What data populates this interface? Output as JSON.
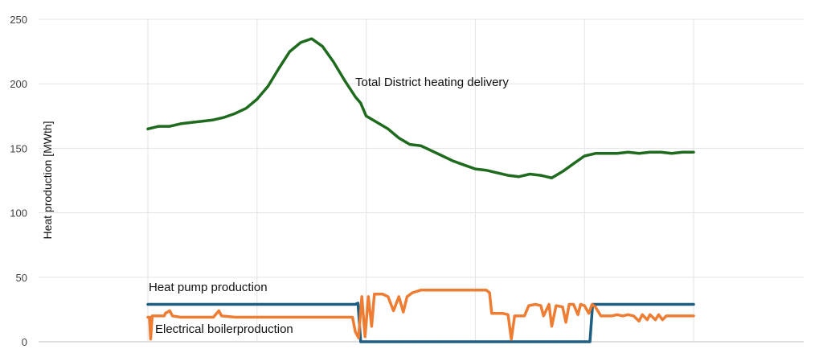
{
  "chart_data": {
    "type": "line",
    "title": "",
    "xlabel": "",
    "ylabel": "Heat production [MWth]",
    "ylim": [
      0,
      250
    ],
    "yticks": [
      0,
      50,
      100,
      150,
      200,
      250
    ],
    "xlim": [
      0,
      100
    ],
    "grid": true,
    "legend": "none",
    "series": [
      {
        "name": "Total District heating delivery",
        "color": "#1e6b1e",
        "points": [
          [
            0,
            165
          ],
          [
            2,
            167
          ],
          [
            4,
            167
          ],
          [
            6,
            169
          ],
          [
            8,
            170
          ],
          [
            10,
            171
          ],
          [
            12,
            172
          ],
          [
            14,
            174
          ],
          [
            16,
            177
          ],
          [
            18,
            181
          ],
          [
            20,
            188
          ],
          [
            22,
            198
          ],
          [
            24,
            212
          ],
          [
            26,
            225
          ],
          [
            28,
            232
          ],
          [
            30,
            235
          ],
          [
            32,
            229
          ],
          [
            34,
            217
          ],
          [
            36,
            203
          ],
          [
            38,
            190
          ],
          [
            39,
            185
          ],
          [
            40,
            175
          ],
          [
            42,
            170
          ],
          [
            44,
            165
          ],
          [
            46,
            158
          ],
          [
            48,
            153
          ],
          [
            50,
            152
          ],
          [
            52,
            148
          ],
          [
            54,
            144
          ],
          [
            56,
            140
          ],
          [
            58,
            137
          ],
          [
            60,
            134
          ],
          [
            62,
            133
          ],
          [
            64,
            131
          ],
          [
            66,
            129
          ],
          [
            68,
            128
          ],
          [
            70,
            130
          ],
          [
            72,
            129
          ],
          [
            74,
            127
          ],
          [
            76,
            132
          ],
          [
            78,
            138
          ],
          [
            80,
            144
          ],
          [
            82,
            146
          ],
          [
            84,
            146
          ],
          [
            86,
            146
          ],
          [
            88,
            147
          ],
          [
            90,
            146
          ],
          [
            92,
            147
          ],
          [
            94,
            147
          ],
          [
            96,
            146
          ],
          [
            98,
            147
          ],
          [
            100,
            147
          ]
        ]
      },
      {
        "name": "Heat pump production",
        "color": "#1d5f82",
        "points": [
          [
            0,
            29
          ],
          [
            38,
            29
          ],
          [
            38.5,
            30
          ],
          [
            39,
            0
          ],
          [
            60,
            0
          ],
          [
            64,
            0
          ],
          [
            68,
            0
          ],
          [
            72,
            0
          ],
          [
            81,
            0
          ],
          [
            81.5,
            29
          ],
          [
            100,
            29
          ]
        ]
      },
      {
        "name": "Electrical boilerproduction",
        "color": "#ee7d33",
        "points": [
          [
            0,
            19
          ],
          [
            0.3,
            19
          ],
          [
            0.5,
            2
          ],
          [
            0.8,
            20
          ],
          [
            3,
            20
          ],
          [
            3.2,
            22
          ],
          [
            4,
            24
          ],
          [
            4.5,
            20
          ],
          [
            6,
            19
          ],
          [
            10,
            19
          ],
          [
            12,
            19
          ],
          [
            13,
            24
          ],
          [
            13.5,
            20
          ],
          [
            16,
            19
          ],
          [
            20,
            19
          ],
          [
            24,
            19
          ],
          [
            28,
            19
          ],
          [
            32,
            19
          ],
          [
            36,
            19
          ],
          [
            37.5,
            19
          ],
          [
            38,
            8
          ],
          [
            38.6,
            3
          ],
          [
            39.2,
            35
          ],
          [
            39.8,
            4
          ],
          [
            40.4,
            35
          ],
          [
            41,
            12
          ],
          [
            41.5,
            37
          ],
          [
            43,
            37
          ],
          [
            44,
            35
          ],
          [
            45,
            24
          ],
          [
            46,
            35
          ],
          [
            46.8,
            23
          ],
          [
            47.5,
            35
          ],
          [
            48.5,
            38
          ],
          [
            50,
            40
          ],
          [
            52,
            40
          ],
          [
            56,
            40
          ],
          [
            60,
            40
          ],
          [
            62,
            40
          ],
          [
            62.6,
            38
          ],
          [
            63,
            22
          ],
          [
            65,
            22
          ],
          [
            66,
            21
          ],
          [
            66.6,
            2
          ],
          [
            67.2,
            20
          ],
          [
            69,
            20
          ],
          [
            69.8,
            28
          ],
          [
            71,
            29
          ],
          [
            72,
            28
          ],
          [
            72.5,
            20
          ],
          [
            73.5,
            29
          ],
          [
            74,
            12
          ],
          [
            74.8,
            28
          ],
          [
            76,
            27
          ],
          [
            76.6,
            15
          ],
          [
            77.2,
            29
          ],
          [
            78,
            29
          ],
          [
            78.8,
            21
          ],
          [
            79.3,
            29
          ],
          [
            80,
            28
          ],
          [
            80.8,
            22
          ],
          [
            81.4,
            29
          ],
          [
            82,
            27
          ],
          [
            83,
            20
          ],
          [
            85,
            20
          ],
          [
            86,
            21
          ],
          [
            87,
            20
          ],
          [
            88,
            21
          ],
          [
            89,
            20
          ],
          [
            90,
            16
          ],
          [
            90.6,
            21
          ],
          [
            91.5,
            17
          ],
          [
            92,
            21
          ],
          [
            93,
            17
          ],
          [
            93.6,
            21
          ],
          [
            94.3,
            17
          ],
          [
            95,
            20
          ],
          [
            97,
            20
          ],
          [
            100,
            20
          ]
        ]
      }
    ],
    "annotations": [
      {
        "text": "Total District heating delivery",
        "series": 0
      },
      {
        "text": "Heat pump production",
        "series": 1
      },
      {
        "text": "Electrical boilerproduction",
        "series": 2
      }
    ]
  }
}
